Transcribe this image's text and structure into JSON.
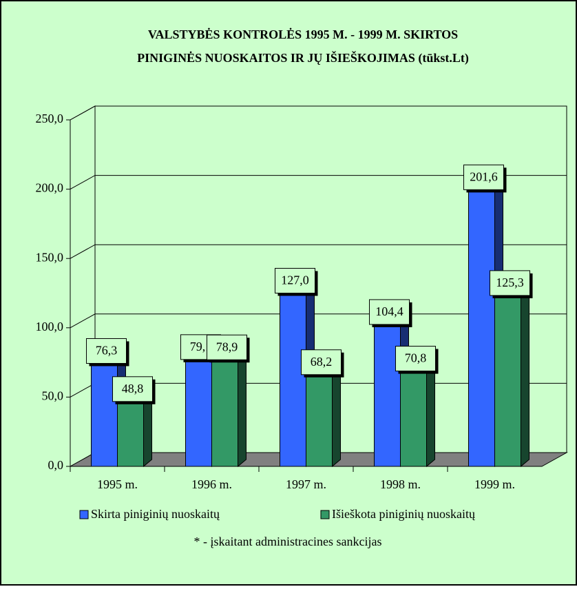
{
  "chart_data": {
    "type": "bar3d",
    "title": [
      "VALSTYBĖS KONTROLĖS 1995 M.  - 1999 M. SKIRTOS",
      "PINIGINĖS NUOSKAITOS IR JŲ IŠIEŠKOJIMAS (tūkst.Lt)"
    ],
    "categories": [
      "1995 m.",
      "1996 m.",
      "1997 m.",
      "1998 m.",
      "1999 m."
    ],
    "series": [
      {
        "name": "Skirta piniginių nuoskaitų",
        "color": "#3366ff",
        "values": [
          76.3,
          79.1,
          127.0,
          104.4,
          201.6
        ],
        "value_labels": [
          "76,3",
          "79,1",
          "127,0",
          "104,4",
          "201,6"
        ]
      },
      {
        "name": "Išieškota piniginių nuoskaitų",
        "color": "#339966",
        "values": [
          48.8,
          78.9,
          68.2,
          70.8,
          125.3
        ],
        "value_labels": [
          "48,8",
          "78,9",
          "68,2",
          "70,8",
          "125,3"
        ]
      }
    ],
    "ylim": [
      0,
      250
    ],
    "yticks": [
      {
        "value": 0,
        "label": "0,0"
      },
      {
        "value": 50,
        "label": "50,0"
      },
      {
        "value": 100,
        "label": "100,0"
      },
      {
        "value": 150,
        "label": "150,0"
      },
      {
        "value": 200,
        "label": "200,0"
      },
      {
        "value": 250,
        "label": "250,0"
      }
    ],
    "grid": true,
    "note": "* - įskaitant administracines sankcijas"
  }
}
